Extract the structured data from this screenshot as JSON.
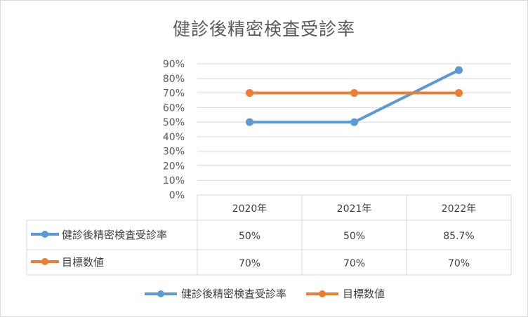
{
  "chart_data": {
    "type": "line",
    "title": "健診後精密検査受診率",
    "categories": [
      "2020年",
      "2021年",
      "2022年"
    ],
    "ylim": [
      0,
      90
    ],
    "yticks": [
      "0%",
      "10%",
      "20%",
      "30%",
      "40%",
      "50%",
      "60%",
      "70%",
      "80%",
      "90%"
    ],
    "grid": true,
    "legend_position": "bottom",
    "series": [
      {
        "name": "健診後精密検査受診率",
        "values": [
          50,
          50,
          85.7
        ],
        "labels": [
          "50%",
          "50%",
          "85.7%"
        ],
        "color": "#5b9bd5"
      },
      {
        "name": "目標数値",
        "values": [
          70,
          70,
          70
        ],
        "labels": [
          "70%",
          "70%",
          "70%"
        ],
        "color": "#ed7d31"
      }
    ]
  }
}
